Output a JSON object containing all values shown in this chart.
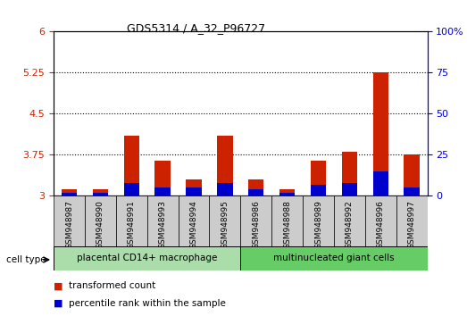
{
  "title": "GDS5314 / A_32_P96727",
  "samples": [
    "GSM948987",
    "GSM948990",
    "GSM948991",
    "GSM948993",
    "GSM948994",
    "GSM948995",
    "GSM948986",
    "GSM948988",
    "GSM948989",
    "GSM948992",
    "GSM948996",
    "GSM948997"
  ],
  "red_values": [
    3.13,
    3.12,
    4.1,
    3.65,
    3.3,
    4.1,
    3.3,
    3.12,
    3.65,
    3.8,
    5.25,
    3.75
  ],
  "blue_values": [
    2,
    2,
    8,
    5,
    5,
    8,
    4,
    2,
    7,
    8,
    15,
    5
  ],
  "ylim_left": [
    3.0,
    6.0
  ],
  "ylim_right": [
    0,
    100
  ],
  "yticks_left": [
    3.0,
    3.75,
    4.5,
    5.25,
    6.0
  ],
  "yticks_right": [
    0,
    25,
    50,
    75,
    100
  ],
  "ytick_labels_left": [
    "3",
    "3.75",
    "4.5",
    "5.25",
    "6"
  ],
  "ytick_labels_right": [
    "0",
    "25",
    "50",
    "75",
    "100%"
  ],
  "group1_label": "placental CD14+ macrophage",
  "group2_label": "multinucleated giant cells",
  "group1_count": 6,
  "group2_count": 6,
  "cell_type_label": "cell type",
  "legend_red": "transformed count",
  "legend_blue": "percentile rank within the sample",
  "bg_color": "#ffffff",
  "bar_color_red": "#cc2200",
  "bar_color_blue": "#0000cc",
  "left_axis_color": "#cc2200",
  "right_axis_color": "#0000cc",
  "base_value": 3.0,
  "group1_color": "#aaddaa",
  "group2_color": "#66cc66",
  "label_box_color": "#cccccc"
}
